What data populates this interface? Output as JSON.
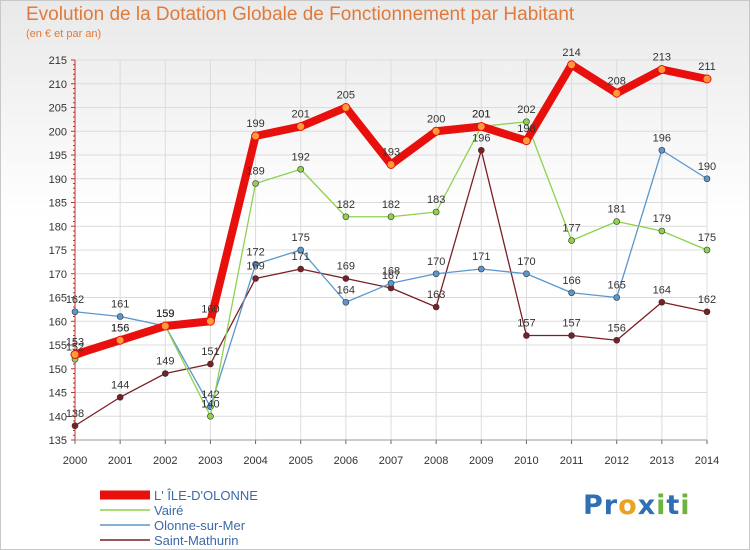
{
  "chart_data": {
    "type": "line",
    "title": "Evolution de la Dotation Globale de Fonctionnement par Habitant",
    "subtitle": "(en € et par an)",
    "x": [
      "2000",
      "2001",
      "2002",
      "2003",
      "2004",
      "2005",
      "2006",
      "2007",
      "2008",
      "2009",
      "2010",
      "2011",
      "2012",
      "2013",
      "2014"
    ],
    "ylim": [
      135,
      215
    ],
    "yticks": [
      135,
      140,
      145,
      150,
      155,
      160,
      165,
      170,
      175,
      180,
      185,
      190,
      195,
      200,
      205,
      210,
      215
    ],
    "grid": true,
    "legend_position": "bottom-left",
    "series": [
      {
        "name": "Saint-Mathurin",
        "color": "#7a1f24",
        "values": [
          138,
          144,
          149,
          151,
          169,
          171,
          169,
          167,
          163,
          196,
          157,
          157,
          156,
          164,
          162
        ]
      },
      {
        "name": "Olonne-sur-Mer",
        "color": "#5b97cc",
        "values": [
          162,
          161,
          159,
          142,
          172,
          175,
          164,
          168,
          170,
          171,
          170,
          166,
          165,
          196,
          190
        ]
      },
      {
        "name": "Vairé",
        "color": "#8fd14f",
        "values": [
          152,
          156,
          159,
          140,
          189,
          192,
          182,
          182,
          183,
          201,
          202,
          177,
          181,
          179,
          175
        ]
      },
      {
        "name": "L' ÎLE-D'OLONNE",
        "color": "#e8100c",
        "values": [
          153,
          156,
          159,
          160,
          199,
          201,
          205,
          193,
          200,
          201,
          198,
          214,
          208,
          213,
          211
        ]
      }
    ]
  },
  "logo": {
    "text": "Proxiti",
    "letters": [
      {
        "ch": "P",
        "color": "#2f6fb3"
      },
      {
        "ch": "r",
        "color": "#2f6fb3"
      },
      {
        "ch": "o",
        "color": "#e8a321"
      },
      {
        "ch": "x",
        "color": "#2f6fb3"
      },
      {
        "ch": "i",
        "color": "#6cb33f"
      },
      {
        "ch": "t",
        "color": "#2f6fb3"
      },
      {
        "ch": "i",
        "color": "#6cb33f"
      }
    ]
  }
}
